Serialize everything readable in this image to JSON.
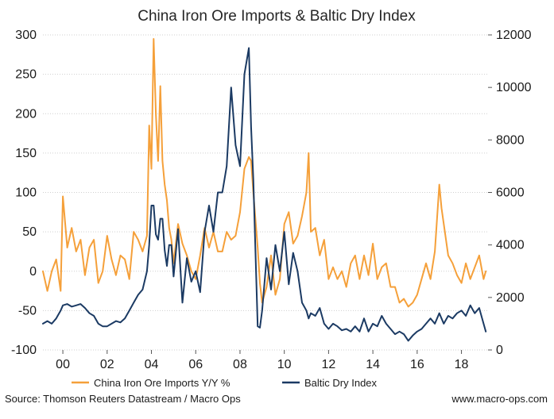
{
  "chart_data": {
    "type": "line",
    "title": "China Iron Ore Imports & Baltic Dry Index",
    "x_ticks": [
      "00",
      "02",
      "04",
      "06",
      "08",
      "10",
      "12",
      "14",
      "16",
      "18"
    ],
    "x_tick_years": [
      2000,
      2002,
      2004,
      2006,
      2008,
      2010,
      2012,
      2014,
      2016,
      2018
    ],
    "xlim": [
      1999.1,
      2019.2
    ],
    "y_left": {
      "ylim": [
        -100,
        300
      ],
      "ticks": [
        -100,
        -50,
        0,
        50,
        100,
        150,
        200,
        250,
        300
      ],
      "ticklabels": [
        "-100",
        "-50",
        "0",
        "50",
        "100",
        "150",
        "200",
        "250",
        "300"
      ]
    },
    "y_right": {
      "ylim": [
        0,
        12000
      ],
      "ticks": [
        0,
        2000,
        4000,
        6000,
        8000,
        10000,
        12000
      ],
      "ticklabels": [
        "0",
        "2000",
        "4000",
        "6000",
        "8000",
        "10000",
        "12000"
      ]
    },
    "grid": true,
    "legend_position": "bottom",
    "series": [
      {
        "name": "China Iron Ore Imports Y/Y %",
        "axis": "left",
        "color": "#F5A03A",
        "x": [
          1999.1,
          1999.3,
          1999.5,
          1999.7,
          1999.9,
          2000.0,
          2000.2,
          2000.4,
          2000.6,
          2000.8,
          2001.0,
          2001.2,
          2001.4,
          2001.6,
          2001.8,
          2002.0,
          2002.2,
          2002.4,
          2002.6,
          2002.8,
          2003.0,
          2003.2,
          2003.4,
          2003.6,
          2003.8,
          2003.9,
          2004.0,
          2004.1,
          2004.2,
          2004.3,
          2004.4,
          2004.5,
          2004.6,
          2004.7,
          2004.8,
          2004.9,
          2005.0,
          2005.2,
          2005.4,
          2005.6,
          2005.8,
          2006.0,
          2006.2,
          2006.4,
          2006.6,
          2006.8,
          2007.0,
          2007.2,
          2007.4,
          2007.6,
          2007.8,
          2008.0,
          2008.2,
          2008.4,
          2008.5,
          2008.6,
          2008.8,
          2008.9,
          2009.0,
          2009.2,
          2009.4,
          2009.6,
          2009.8,
          2010.0,
          2010.2,
          2010.4,
          2010.6,
          2010.8,
          2011.0,
          2011.1,
          2011.2,
          2011.4,
          2011.6,
          2011.8,
          2012.0,
          2012.2,
          2012.4,
          2012.6,
          2012.8,
          2013.0,
          2013.2,
          2013.4,
          2013.6,
          2013.8,
          2014.0,
          2014.2,
          2014.4,
          2014.6,
          2014.8,
          2015.0,
          2015.2,
          2015.4,
          2015.6,
          2015.8,
          2016.0,
          2016.2,
          2016.4,
          2016.6,
          2016.8,
          2017.0,
          2017.1,
          2017.2,
          2017.4,
          2017.6,
          2017.8,
          2018.0,
          2018.2,
          2018.4,
          2018.6,
          2018.8,
          2019.0,
          2019.1
        ],
        "values": [
          0,
          -25,
          0,
          15,
          -25,
          95,
          30,
          55,
          25,
          40,
          -5,
          30,
          40,
          -15,
          0,
          45,
          15,
          -5,
          20,
          15,
          -10,
          50,
          40,
          25,
          45,
          185,
          130,
          295,
          200,
          140,
          235,
          140,
          110,
          90,
          55,
          40,
          10,
          60,
          35,
          20,
          0,
          -10,
          20,
          55,
          30,
          50,
          25,
          25,
          50,
          40,
          45,
          75,
          130,
          145,
          140,
          100,
          30,
          -15,
          -40,
          -20,
          20,
          -30,
          -10,
          60,
          75,
          35,
          45,
          70,
          100,
          150,
          50,
          55,
          20,
          40,
          -10,
          5,
          -10,
          0,
          -20,
          10,
          20,
          -10,
          20,
          -5,
          35,
          -10,
          5,
          10,
          -20,
          -20,
          -40,
          -35,
          -45,
          -40,
          -30,
          -10,
          10,
          -10,
          25,
          110,
          80,
          60,
          20,
          10,
          -5,
          -15,
          10,
          -10,
          5,
          20,
          -10,
          0
        ],
        "stroke_width": 2
      },
      {
        "name": "Baltic Dry Index",
        "axis": "right",
        "color": "#1B3A63",
        "x": [
          1999.1,
          1999.3,
          1999.5,
          1999.7,
          1999.9,
          2000.0,
          2000.2,
          2000.4,
          2000.6,
          2000.8,
          2001.0,
          2001.2,
          2001.4,
          2001.6,
          2001.8,
          2002.0,
          2002.2,
          2002.4,
          2002.6,
          2002.8,
          2003.0,
          2003.2,
          2003.4,
          2003.6,
          2003.8,
          2003.9,
          2004.0,
          2004.1,
          2004.2,
          2004.3,
          2004.4,
          2004.5,
          2004.6,
          2004.7,
          2004.8,
          2004.9,
          2005.0,
          2005.2,
          2005.4,
          2005.6,
          2005.8,
          2006.0,
          2006.2,
          2006.4,
          2006.6,
          2006.8,
          2007.0,
          2007.2,
          2007.4,
          2007.6,
          2007.8,
          2008.0,
          2008.2,
          2008.4,
          2008.5,
          2008.6,
          2008.8,
          2008.9,
          2009.0,
          2009.2,
          2009.4,
          2009.6,
          2009.8,
          2010.0,
          2010.2,
          2010.4,
          2010.6,
          2010.8,
          2011.0,
          2011.1,
          2011.2,
          2011.4,
          2011.6,
          2011.8,
          2012.0,
          2012.2,
          2012.4,
          2012.6,
          2012.8,
          2013.0,
          2013.2,
          2013.4,
          2013.6,
          2013.8,
          2014.0,
          2014.2,
          2014.4,
          2014.6,
          2014.8,
          2015.0,
          2015.2,
          2015.4,
          2015.6,
          2015.8,
          2016.0,
          2016.2,
          2016.4,
          2016.6,
          2016.8,
          2017.0,
          2017.1,
          2017.2,
          2017.4,
          2017.6,
          2017.8,
          2018.0,
          2018.2,
          2018.4,
          2018.6,
          2018.8,
          2019.0,
          2019.1
        ],
        "values": [
          1000,
          1100,
          1000,
          1200,
          1500,
          1700,
          1750,
          1650,
          1700,
          1750,
          1600,
          1400,
          1300,
          1000,
          900,
          900,
          1000,
          1100,
          1050,
          1200,
          1500,
          1800,
          2100,
          2300,
          3000,
          4000,
          5500,
          5500,
          4400,
          4200,
          5000,
          5000,
          3800,
          3200,
          4000,
          4000,
          2800,
          4600,
          1800,
          3500,
          2600,
          3000,
          2200,
          4500,
          5500,
          4500,
          6000,
          6000,
          7000,
          10000,
          7800,
          7000,
          10500,
          11500,
          8500,
          6500,
          900,
          850,
          1500,
          3500,
          2300,
          4000,
          3000,
          4500,
          2500,
          3700,
          3000,
          1800,
          1500,
          1200,
          1400,
          1300,
          1600,
          1000,
          800,
          1000,
          900,
          750,
          800,
          700,
          900,
          700,
          1200,
          700,
          1000,
          900,
          1300,
          1000,
          800,
          600,
          700,
          600,
          350,
          550,
          700,
          800,
          1000,
          1200,
          1000,
          1400,
          1200,
          1000,
          1300,
          1200,
          1400,
          1500,
          1300,
          1700,
          1400,
          1600,
          1000,
          700
        ],
        "stroke_width": 2
      }
    ],
    "legend": [
      "China Iron Ore Imports Y/Y %",
      "Baltic Dry Index"
    ]
  },
  "footer": {
    "source": "Source: Thomson Reuters Datastream / Macro Ops",
    "website": "www.macro-ops.com"
  }
}
